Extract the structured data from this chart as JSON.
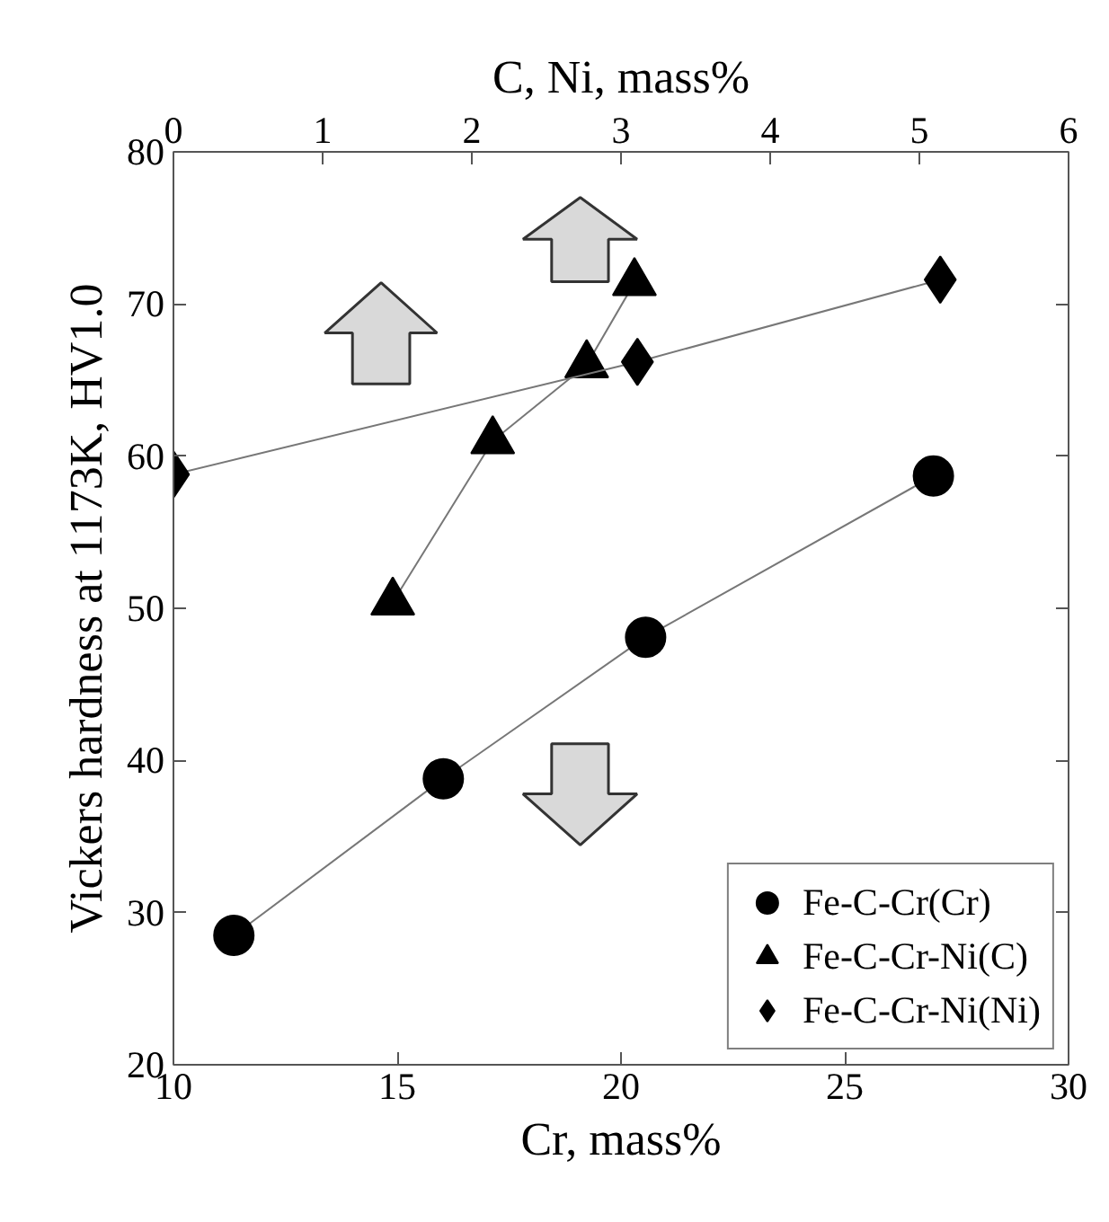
{
  "chart_data": {
    "type": "line",
    "xlabel": "Cr, mass%",
    "x2label": "C, Ni, mass%",
    "ylabel": "Vickers hardness at 1173K, HV1.0",
    "xlim": [
      10,
      30
    ],
    "xticks": [
      10,
      15,
      20,
      25,
      30
    ],
    "x2lim": [
      0,
      6
    ],
    "x2ticks": [
      0,
      1,
      2,
      3,
      4,
      5,
      6
    ],
    "ylim": [
      20,
      80
    ],
    "yticks": [
      20,
      30,
      40,
      50,
      60,
      70,
      80
    ],
    "grid": false,
    "legend": "bottom right",
    "series": [
      {
        "name": "Fe-C-Cr(Cr)",
        "color": "#000000",
        "marker": "circle",
        "x": [
          11.35,
          16.03,
          20.55,
          26.98
        ],
        "values": [
          28.5,
          38.8,
          48.1,
          58.7
        ]
      },
      {
        "name": "Fe-C-Cr-Ni(C)",
        "color": "#000000",
        "marker": "triangle",
        "axis": "x2",
        "x": [
          1.47,
          2.14,
          2.77,
          3.09
        ],
        "values": [
          50.4,
          61.0,
          66.0,
          71.4
        ]
      },
      {
        "name": "Fe-C-Cr-Ni(Ni)",
        "color": "#000000",
        "marker": "diamond",
        "axis": "x2",
        "x": [
          0,
          3.11,
          5.14
        ],
        "values": [
          58.8,
          66.2,
          71.6
        ]
      }
    ]
  }
}
